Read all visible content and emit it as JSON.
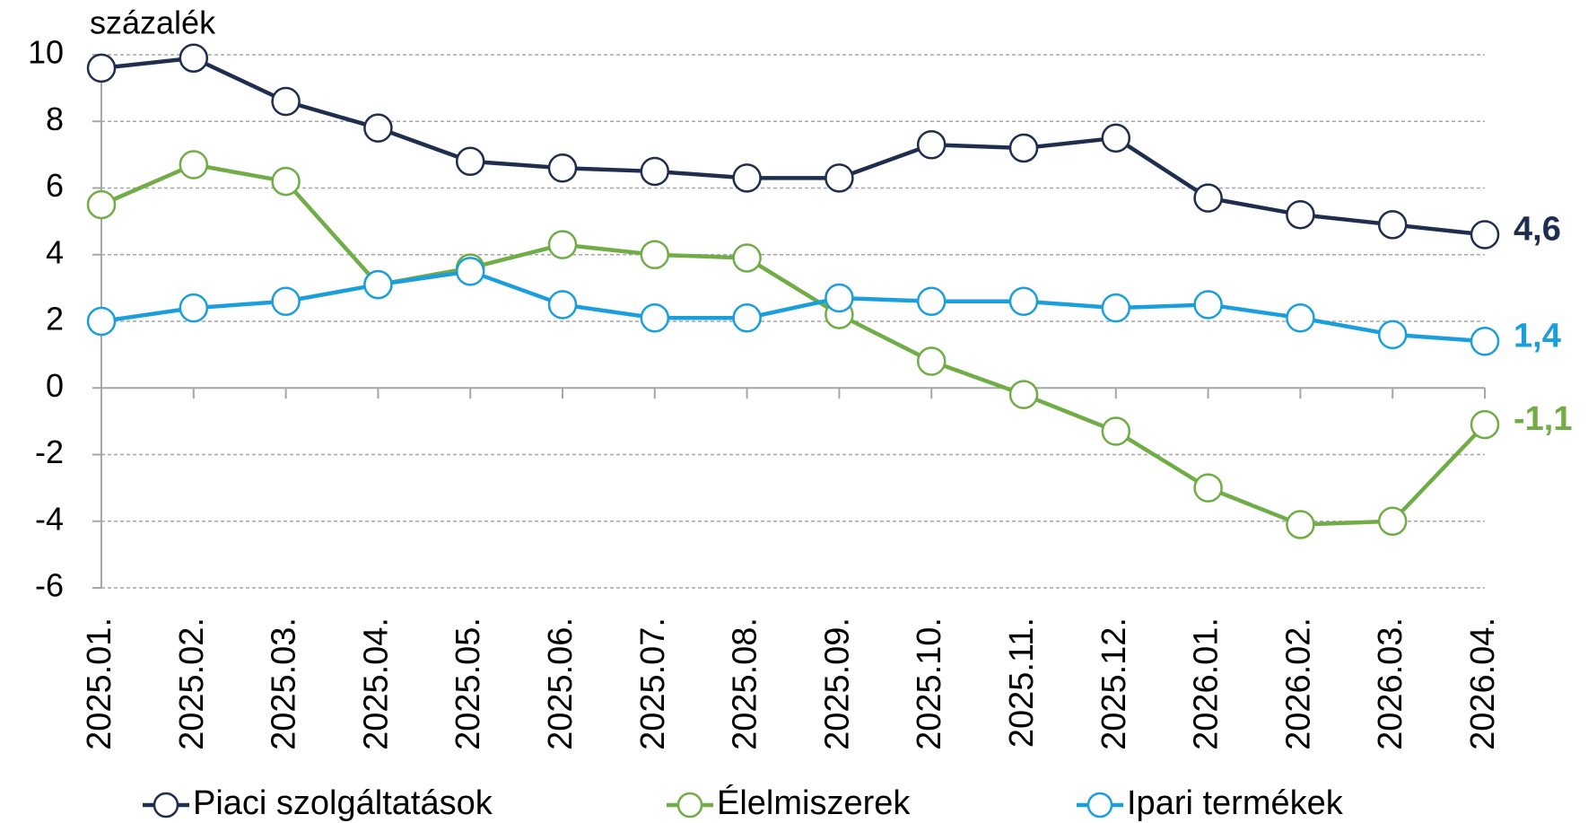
{
  "chart_data": {
    "type": "line",
    "ylabel": "százalék",
    "categories": [
      "2025.01.",
      "2025.02.",
      "2025.03.",
      "2025.04.",
      "2025.05.",
      "2025.06.",
      "2025.07.",
      "2025.08.",
      "2025.09.",
      "2025.10.",
      "2025.11.",
      "2025.12.",
      "2026.01.",
      "2026.02.",
      "2026.03.",
      "2026.04."
    ],
    "series": [
      {
        "name": "Piaci szolgáltatások",
        "color": "#1f2d4e",
        "values": [
          9.6,
          9.9,
          8.6,
          7.8,
          6.8,
          6.6,
          6.5,
          6.3,
          6.3,
          7.3,
          7.2,
          7.5,
          5.7,
          5.2,
          4.9,
          4.6
        ],
        "value_labels": [
          null,
          null,
          null,
          null,
          null,
          null,
          null,
          null,
          null,
          null,
          null,
          null,
          null,
          null,
          null,
          "4,6"
        ]
      },
      {
        "name": "Élelmiszerek",
        "color": "#70ad47",
        "values": [
          5.5,
          6.7,
          6.2,
          3.1,
          3.6,
          4.3,
          4.0,
          3.9,
          2.2,
          0.8,
          -0.2,
          -1.3,
          -3.0,
          -4.1,
          -4.0,
          -1.1
        ],
        "value_labels": [
          null,
          null,
          null,
          null,
          null,
          null,
          null,
          null,
          null,
          null,
          null,
          null,
          null,
          null,
          null,
          "-1,1"
        ]
      },
      {
        "name": "Ipari termékek",
        "color": "#1a9fdc",
        "values": [
          2.0,
          2.4,
          2.6,
          3.1,
          3.5,
          2.5,
          2.1,
          2.1,
          2.7,
          2.6,
          2.6,
          2.4,
          2.5,
          2.1,
          1.6,
          1.4
        ],
        "value_labels": [
          null,
          null,
          null,
          null,
          null,
          null,
          null,
          null,
          null,
          null,
          null,
          null,
          null,
          null,
          null,
          "1,4"
        ]
      }
    ],
    "ylim": [
      -6,
      10
    ],
    "yticks": [
      -6,
      -4,
      -2,
      0,
      2,
      4,
      6,
      8,
      10
    ],
    "grid": true
  }
}
